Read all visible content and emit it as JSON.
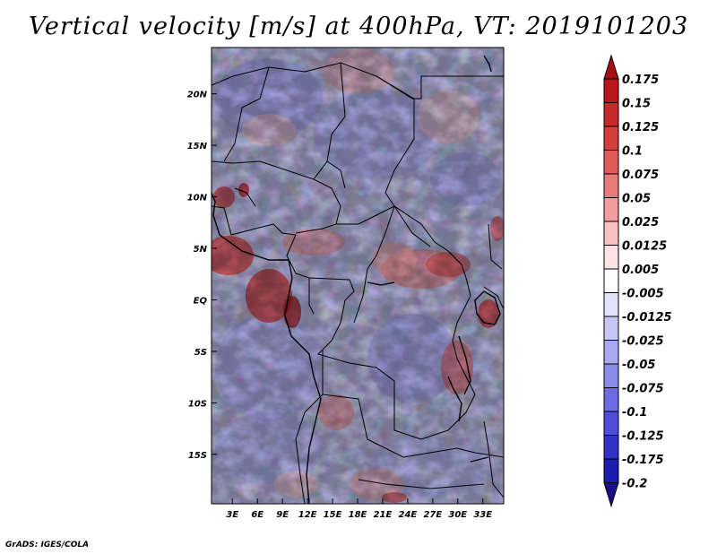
{
  "title": "Vertical velocity [m/s] at 400hPa, VT: 2019101203",
  "footer": "GrADS: IGES/COLA",
  "map": {
    "lon_labels": [
      "3E",
      "6E",
      "9E",
      "12E",
      "15E",
      "18E",
      "21E",
      "24E",
      "27E",
      "30E",
      "33E"
    ],
    "lon_values": [
      3,
      6,
      9,
      12,
      15,
      18,
      21,
      24,
      27,
      30,
      33
    ],
    "lat_labels": [
      "20N",
      "15N",
      "10N",
      "5N",
      "EQ",
      "5S",
      "10S",
      "15S"
    ],
    "lat_values": [
      20,
      15,
      10,
      5,
      0,
      -5,
      -10,
      -15
    ],
    "lon_range": [
      0.5,
      35.5
    ],
    "lat_range": [
      -19.8,
      24.5
    ]
  },
  "colorbar": {
    "labels": [
      "0.175",
      "0.15",
      "0.125",
      "0.1",
      "0.075",
      "0.05",
      "0.025",
      "0.0125",
      "0.005",
      "-0.005",
      "-0.0125",
      "-0.025",
      "-0.05",
      "-0.075",
      "-0.1",
      "-0.125",
      "-0.175",
      "-0.2"
    ],
    "colors": [
      "#a50f15",
      "#b7171d",
      "#c62a2a",
      "#d63d3d",
      "#e05a5a",
      "#ea7b7b",
      "#f29d9d",
      "#f8c0c0",
      "#fde3e3",
      "#ffffff",
      "#e2e2fb",
      "#c7c7f6",
      "#a9a9f0",
      "#8a8ae9",
      "#6c6ce2",
      "#4e4edb",
      "#3232c8",
      "#1c1cb0",
      "#1a0f8f"
    ]
  }
}
